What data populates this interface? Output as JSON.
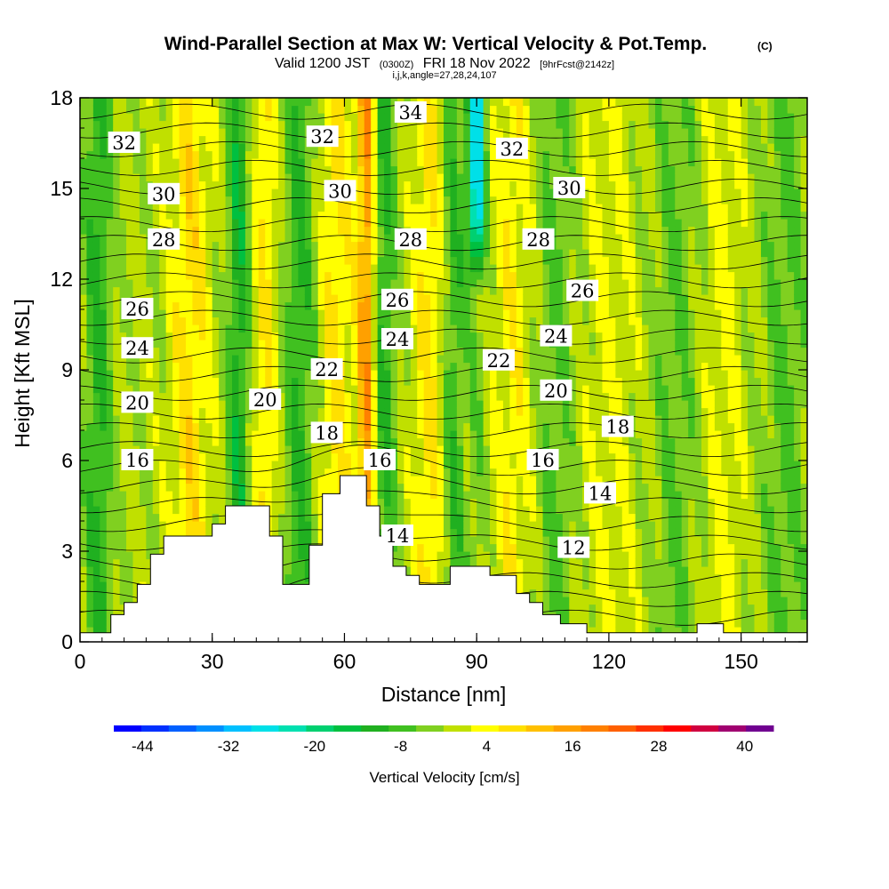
{
  "title": {
    "main": "Wind-Parallel Section at Max W: Vertical Velocity & Pot.Temp.",
    "copyright": "(C)",
    "valid_prefix": "Valid 1200 JST",
    "valid_zulu": "(0300Z)",
    "valid_date": "FRI 18 Nov 2022",
    "forecast_tag": "[9hrFcst@2142z]",
    "indices": "i,j,k,angle=27,28,24,107"
  },
  "chart_data": {
    "type": "heatmap",
    "xlabel": "Distance [nm]",
    "ylabel": "Height [Kft MSL]",
    "xlim": [
      0,
      165
    ],
    "ylim": [
      0,
      18
    ],
    "x_ticks": [
      0,
      30,
      60,
      90,
      120,
      150
    ],
    "y_ticks": [
      0,
      3,
      6,
      9,
      12,
      15,
      18
    ],
    "colorbar": {
      "label": "Vertical Velocity [cm/s]",
      "tick_labels": [
        -44,
        -32,
        -20,
        -8,
        4,
        16,
        28,
        40
      ],
      "min": -48,
      "max": 44,
      "step": 4,
      "colors": [
        "#0000ff",
        "#0030ff",
        "#0060ff",
        "#0090ff",
        "#00c0ff",
        "#00e0e8",
        "#00e0b0",
        "#00d070",
        "#00c040",
        "#20b020",
        "#40c020",
        "#80d020",
        "#c0e000",
        "#ffff00",
        "#ffe000",
        "#ffc000",
        "#ffa000",
        "#ff8000",
        "#ff6000",
        "#ff3000",
        "#ff0000",
        "#d00040",
        "#a00070",
        "#700090"
      ]
    },
    "theta_contours": [
      {
        "label": "12",
        "x": 112,
        "y": 3.1
      },
      {
        "label": "14",
        "x": 72,
        "y": 3.5
      },
      {
        "label": "14",
        "x": 118,
        "y": 4.9
      },
      {
        "label": "16",
        "x": 13,
        "y": 6.0
      },
      {
        "label": "16",
        "x": 68,
        "y": 6.0
      },
      {
        "label": "16",
        "x": 105,
        "y": 6.0
      },
      {
        "label": "18",
        "x": 56,
        "y": 6.9
      },
      {
        "label": "18",
        "x": 122,
        "y": 7.1
      },
      {
        "label": "20",
        "x": 13,
        "y": 7.9
      },
      {
        "label": "20",
        "x": 42,
        "y": 8.0
      },
      {
        "label": "20",
        "x": 108,
        "y": 8.3
      },
      {
        "label": "22",
        "x": 56,
        "y": 9.0
      },
      {
        "label": "22",
        "x": 95,
        "y": 9.3
      },
      {
        "label": "24",
        "x": 13,
        "y": 9.7
      },
      {
        "label": "24",
        "x": 72,
        "y": 10.0
      },
      {
        "label": "24",
        "x": 108,
        "y": 10.1
      },
      {
        "label": "26",
        "x": 13,
        "y": 11.0
      },
      {
        "label": "26",
        "x": 72,
        "y": 11.3
      },
      {
        "label": "26",
        "x": 114,
        "y": 11.6
      },
      {
        "label": "28",
        "x": 19,
        "y": 13.3
      },
      {
        "label": "28",
        "x": 75,
        "y": 13.3
      },
      {
        "label": "28",
        "x": 104,
        "y": 13.3
      },
      {
        "label": "30",
        "x": 19,
        "y": 14.8
      },
      {
        "label": "30",
        "x": 59,
        "y": 14.9
      },
      {
        "label": "30",
        "x": 111,
        "y": 15.0
      },
      {
        "label": "32",
        "x": 10,
        "y": 16.5
      },
      {
        "label": "32",
        "x": 55,
        "y": 16.7
      },
      {
        "label": "32",
        "x": 98,
        "y": 16.3
      },
      {
        "label": "34",
        "x": 75,
        "y": 17.5
      }
    ],
    "terrain": [
      [
        0,
        0.3
      ],
      [
        7,
        0.3
      ],
      [
        7,
        0.9
      ],
      [
        10,
        0.9
      ],
      [
        10,
        1.3
      ],
      [
        13,
        1.3
      ],
      [
        13,
        1.9
      ],
      [
        16,
        1.9
      ],
      [
        16,
        2.9
      ],
      [
        19,
        2.9
      ],
      [
        19,
        3.5
      ],
      [
        30,
        3.5
      ],
      [
        30,
        3.9
      ],
      [
        33,
        3.9
      ],
      [
        33,
        4.5
      ],
      [
        43,
        4.5
      ],
      [
        43,
        3.5
      ],
      [
        46,
        3.5
      ],
      [
        46,
        1.9
      ],
      [
        52,
        1.9
      ],
      [
        52,
        3.2
      ],
      [
        55,
        3.2
      ],
      [
        55,
        4.9
      ],
      [
        59,
        4.9
      ],
      [
        59,
        5.5
      ],
      [
        65,
        5.5
      ],
      [
        65,
        4.5
      ],
      [
        68,
        4.5
      ],
      [
        68,
        3.5
      ],
      [
        71,
        3.5
      ],
      [
        71,
        2.5
      ],
      [
        74,
        2.5
      ],
      [
        74,
        2.2
      ],
      [
        77,
        2.2
      ],
      [
        77,
        1.9
      ],
      [
        84,
        1.9
      ],
      [
        84,
        2.5
      ],
      [
        93,
        2.5
      ],
      [
        93,
        2.2
      ],
      [
        99,
        2.2
      ],
      [
        99,
        1.6
      ],
      [
        102,
        1.6
      ],
      [
        102,
        1.3
      ],
      [
        105,
        1.3
      ],
      [
        105,
        0.9
      ],
      [
        109,
        0.9
      ],
      [
        109,
        0.6
      ],
      [
        115,
        0.6
      ],
      [
        115,
        0.3
      ],
      [
        140,
        0.3
      ],
      [
        140,
        0.6
      ],
      [
        146,
        0.6
      ],
      [
        146,
        0.3
      ],
      [
        165,
        0.3
      ]
    ]
  }
}
